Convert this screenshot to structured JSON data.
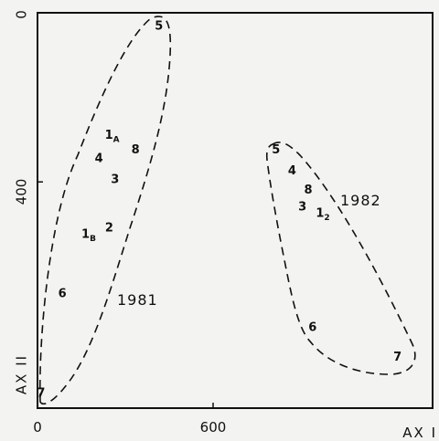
{
  "chart_data": {
    "type": "scatter",
    "title": "",
    "xlabel": "AX I",
    "ylabel": "AX II",
    "xlim": [
      0,
      1350
    ],
    "ylim": [
      0,
      935
    ],
    "y_inverted": true,
    "grid": false,
    "x_ticks": [
      {
        "value": 0,
        "label": "0"
      },
      {
        "value": 600,
        "label": "600"
      }
    ],
    "y_ticks": [
      {
        "value": 0,
        "label": "0"
      },
      {
        "value": 400,
        "label": "400"
      }
    ],
    "series": [
      {
        "name": "1981",
        "hull_style": "dashed",
        "points": [
          {
            "label": "5",
            "x": 415,
            "y": 32
          },
          {
            "label": "1",
            "sub": "A",
            "x": 255,
            "y": 290
          },
          {
            "label": "8",
            "x": 335,
            "y": 325
          },
          {
            "label": "4",
            "x": 210,
            "y": 345
          },
          {
            "label": "3",
            "x": 265,
            "y": 395
          },
          {
            "label": "1",
            "sub": "B",
            "x": 175,
            "y": 525
          },
          {
            "label": "2",
            "x": 245,
            "y": 510
          },
          {
            "label": "6",
            "x": 85,
            "y": 665
          },
          {
            "label": "7",
            "x": 12,
            "y": 900
          }
        ]
      },
      {
        "name": "1982",
        "hull_style": "dashed",
        "points": [
          {
            "label": "5",
            "x": 815,
            "y": 325
          },
          {
            "label": "4",
            "x": 870,
            "y": 375
          },
          {
            "label": "8",
            "x": 925,
            "y": 420
          },
          {
            "label": "3",
            "x": 905,
            "y": 460
          },
          {
            "label": "1",
            "sub": "2",
            "x": 975,
            "y": 475
          },
          {
            "label": "6",
            "x": 940,
            "y": 745
          },
          {
            "label": "7",
            "x": 1230,
            "y": 815
          }
        ]
      }
    ]
  }
}
